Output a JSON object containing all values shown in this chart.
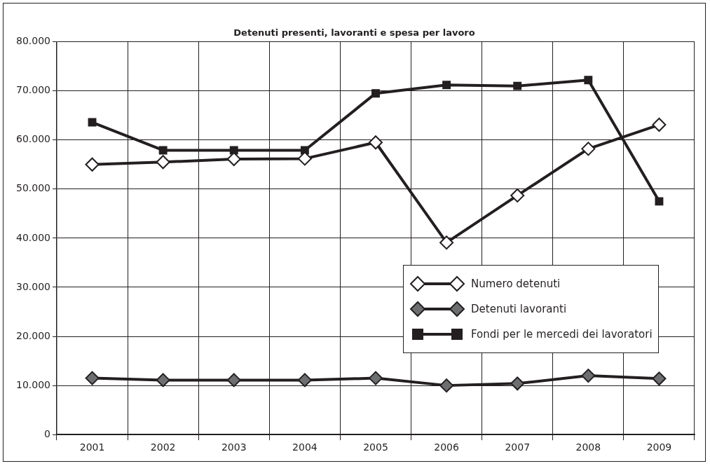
{
  "chart_data": {
    "type": "line",
    "title": "Detenuti presenti, lavoranti e spesa per lavoro",
    "categories": [
      "2001",
      "2002",
      "2003",
      "2004",
      "2005",
      "2006",
      "2007",
      "2008",
      "2009"
    ],
    "series": [
      {
        "name": "Numero detenuti",
        "color": "#231f20",
        "marker": "diamond",
        "colors": [
          "#ffffff",
          "#ffffff",
          "#ffffff",
          "#ffffff",
          "#ffffff",
          "#ffffff",
          "#ffffff",
          "#ffffff",
          "#ffffff"
        ],
        "values": [
          55000,
          55500,
          56100,
          56200,
          59500,
          39100,
          48700,
          58200,
          63100
        ]
      },
      {
        "name": "Detenuti lavoranti",
        "color": "#231f20",
        "marker": "diamond",
        "colors": [
          "#6d6e70",
          "#6d6e70",
          "#6d6e70",
          "#6d6e70",
          "#6d6e70",
          "#6d6e70",
          "#6d6e70",
          "#6d6e70",
          "#6d6e70"
        ],
        "values": [
          11500,
          11100,
          11100,
          11100,
          11500,
          10000,
          10400,
          12000,
          11400
        ]
      },
      {
        "name": "Fondi per le mercedi dei lavoratori",
        "color": "#231f20",
        "marker": "square",
        "colors": [
          "#231f20",
          "#231f20",
          "#231f20",
          "#231f20",
          "#231f20",
          "#231f20",
          "#231f20",
          "#231f20",
          "#231f20"
        ],
        "values": [
          63600,
          57900,
          57900,
          57900,
          69500,
          71200,
          71000,
          72200,
          47500
        ]
      }
    ],
    "ylim": [
      0,
      80000
    ],
    "yticks": [
      0,
      {
        "value": 10000,
        "label": "10.000"
      },
      {
        "value": 20000,
        "label": "20.000"
      },
      {
        "value": 30000,
        "label": "30.000"
      },
      {
        "value": 40000,
        "label": "40.000"
      },
      {
        "value": 50000,
        "label": "50.000"
      },
      {
        "value": 60000,
        "label": "60.000"
      },
      {
        "value": 70000,
        "label": "70.000"
      },
      {
        "value": 80000,
        "label": "80.000"
      }
    ],
    "grid": true,
    "legend": "right",
    "line_style": "solid"
  }
}
